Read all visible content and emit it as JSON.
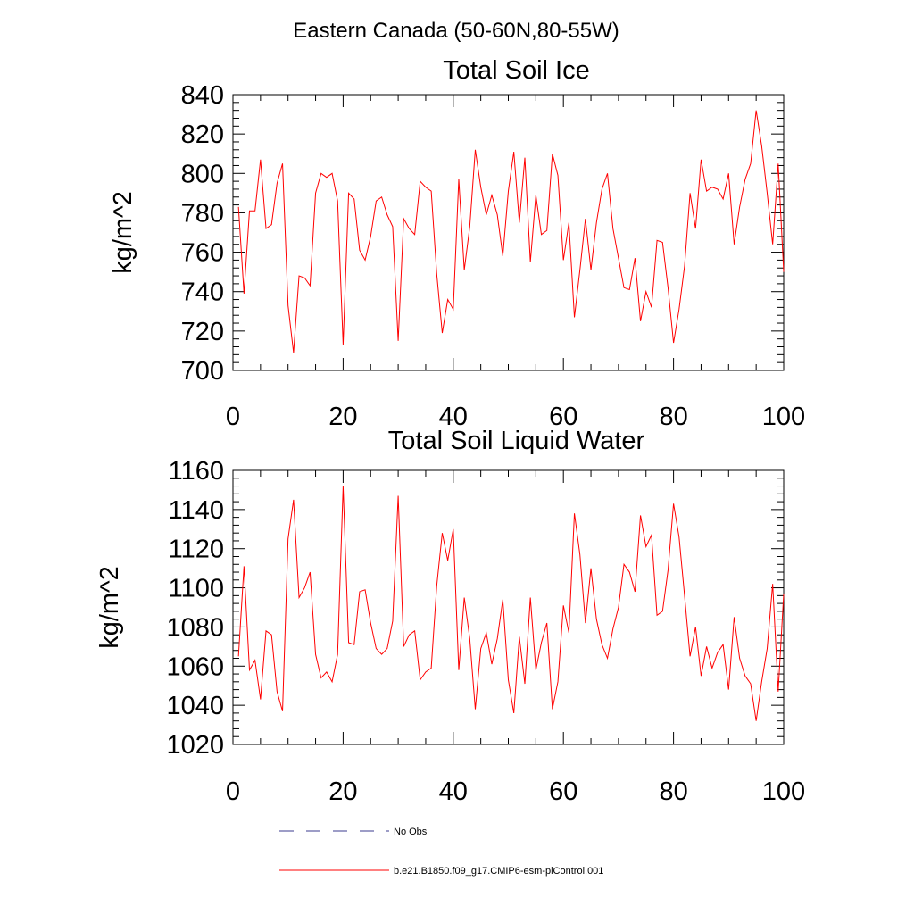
{
  "title": "Eastern Canada (50-60N,80-55W)",
  "colors": {
    "series": "#ff0000",
    "obs": "#3b3b8f",
    "axis": "#000000"
  },
  "legend": {
    "entries": [
      {
        "label": "No Obs",
        "style": "dashed",
        "color": "#3b3b8f"
      },
      {
        "label": "b.e21.B1850.f09_g17.CMIP6-esm-piControl.001",
        "style": "solid",
        "color": "#ff0000"
      }
    ]
  },
  "chart_data": [
    {
      "type": "line",
      "title": "Total Soil Ice",
      "xlabel": "",
      "ylabel": "kg/m^2",
      "xlim": [
        0,
        100
      ],
      "ylim": [
        700,
        840
      ],
      "xticks": [
        0,
        20,
        40,
        60,
        80,
        100
      ],
      "yticks": [
        700,
        720,
        740,
        760,
        780,
        800,
        820,
        840
      ],
      "series": [
        {
          "name": "b.e21.B1850.f09_g17.CMIP6-esm-piControl.001",
          "x_start": 1,
          "values": [
            783,
            739,
            781,
            781,
            807,
            772,
            774,
            795,
            805,
            733,
            709,
            748,
            747,
            743,
            790,
            800,
            798,
            800,
            786,
            713,
            790,
            787,
            761,
            756,
            768,
            786,
            788,
            779,
            773,
            715,
            777,
            772,
            769,
            796,
            793,
            791,
            749,
            719,
            736,
            731,
            797,
            751,
            773,
            812,
            793,
            779,
            789,
            779,
            758,
            791,
            811,
            775,
            808,
            755,
            789,
            769,
            771,
            810,
            799,
            756,
            775,
            727,
            751,
            777,
            751,
            775,
            792,
            800,
            772,
            757,
            742,
            741,
            757,
            725,
            740,
            732,
            766,
            765,
            742,
            714,
            731,
            753,
            790,
            772,
            807,
            791,
            793,
            792,
            787,
            800,
            764,
            783,
            797,
            805,
            832,
            814,
            790,
            764,
            805,
            750
          ]
        }
      ]
    },
    {
      "type": "line",
      "title": "Total Soil Liquid Water",
      "xlabel": "",
      "ylabel": "kg/m^2",
      "xlim": [
        0,
        100
      ],
      "ylim": [
        1020,
        1160
      ],
      "xticks": [
        0,
        20,
        40,
        60,
        80,
        100
      ],
      "yticks": [
        1020,
        1040,
        1060,
        1080,
        1100,
        1120,
        1140,
        1160
      ],
      "series": [
        {
          "name": "b.e21.B1850.f09_g17.CMIP6-esm-piControl.001",
          "x_start": 1,
          "values": [
            1065,
            1111,
            1058,
            1063,
            1043,
            1078,
            1076,
            1047,
            1037,
            1125,
            1145,
            1095,
            1100,
            1108,
            1066,
            1054,
            1057,
            1052,
            1066,
            1152,
            1072,
            1071,
            1098,
            1099,
            1082,
            1069,
            1066,
            1069,
            1083,
            1147,
            1070,
            1076,
            1078,
            1053,
            1057,
            1059,
            1101,
            1128,
            1114,
            1130,
            1058,
            1095,
            1074,
            1038,
            1069,
            1077,
            1061,
            1074,
            1094,
            1053,
            1036,
            1075,
            1051,
            1095,
            1058,
            1072,
            1082,
            1038,
            1052,
            1091,
            1077,
            1138,
            1117,
            1082,
            1110,
            1084,
            1071,
            1064,
            1079,
            1090,
            1112,
            1108,
            1098,
            1137,
            1121,
            1127,
            1086,
            1088,
            1109,
            1143,
            1126,
            1096,
            1065,
            1080,
            1055,
            1070,
            1059,
            1067,
            1071,
            1048,
            1085,
            1064,
            1055,
            1051,
            1032,
            1052,
            1069,
            1102,
            1047,
            1097
          ]
        }
      ]
    }
  ]
}
